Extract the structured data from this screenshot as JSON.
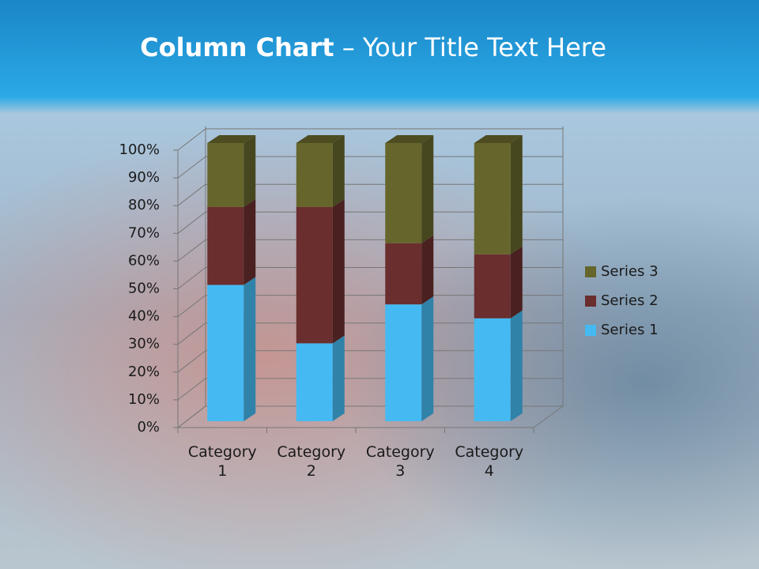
{
  "chart_data": {
    "type": "stacked_bar_3d",
    "title_parts": [
      "Column Chart",
      "– Your Title Text Here"
    ],
    "categories": [
      "Category 1",
      "Category 2",
      "Category 3",
      "Category 4"
    ],
    "series": [
      {
        "name": "Series 1",
        "color": "#45baf2",
        "values": [
          49,
          28,
          42,
          37
        ]
      },
      {
        "name": "Series 2",
        "color": "#6a2e2e",
        "values": [
          28,
          49,
          22,
          23
        ]
      },
      {
        "name": "Series 3",
        "color": "#66662c",
        "values": [
          23,
          23,
          36,
          40
        ]
      }
    ],
    "ylim": [
      0,
      100
    ],
    "yticks": [
      {
        "value": 0,
        "label": "0%"
      },
      {
        "value": 10,
        "label": "10%"
      },
      {
        "value": 20,
        "label": "20%"
      },
      {
        "value": 30,
        "label": "30%"
      },
      {
        "value": 40,
        "label": "40%"
      },
      {
        "value": 50,
        "label": "50%"
      },
      {
        "value": 60,
        "label": "60%"
      },
      {
        "value": 70,
        "label": "70%"
      },
      {
        "value": 80,
        "label": "80%"
      },
      {
        "value": 90,
        "label": "90%"
      },
      {
        "value": 100,
        "label": "100%"
      }
    ],
    "grid": true,
    "legend": "right"
  }
}
